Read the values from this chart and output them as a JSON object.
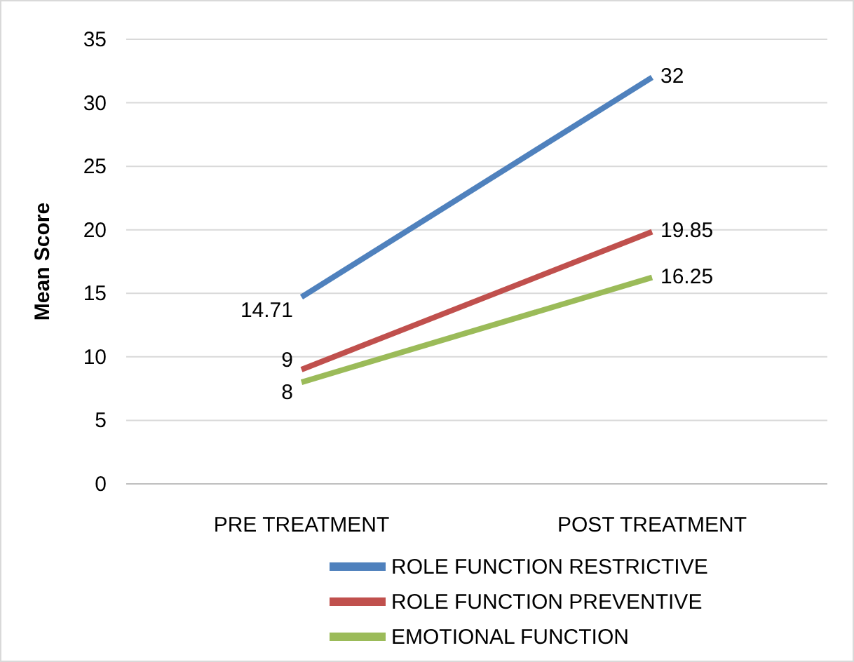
{
  "chart_data": {
    "type": "line",
    "ylabel": "Mean Score",
    "categories": [
      "PRE TREATMENT",
      "POST TREATMENT"
    ],
    "series": [
      {
        "name": "ROLE FUNCTION RESTRICTIVE",
        "color": "#4f81bd",
        "values": [
          14.71,
          32
        ]
      },
      {
        "name": "ROLE FUNCTION PREVENTIVE",
        "color": "#c0504d",
        "values": [
          9,
          19.85
        ]
      },
      {
        "name": "EMOTIONAL FUNCTION",
        "color": "#9bbb59",
        "values": [
          8,
          16.25
        ]
      }
    ],
    "ylim": [
      0,
      35
    ],
    "yticks": [
      0,
      5,
      10,
      15,
      20,
      25,
      30,
      35
    ],
    "grid": "y",
    "legend": "bottom",
    "data_labels": true,
    "marker": "none",
    "line_style": "solid"
  }
}
